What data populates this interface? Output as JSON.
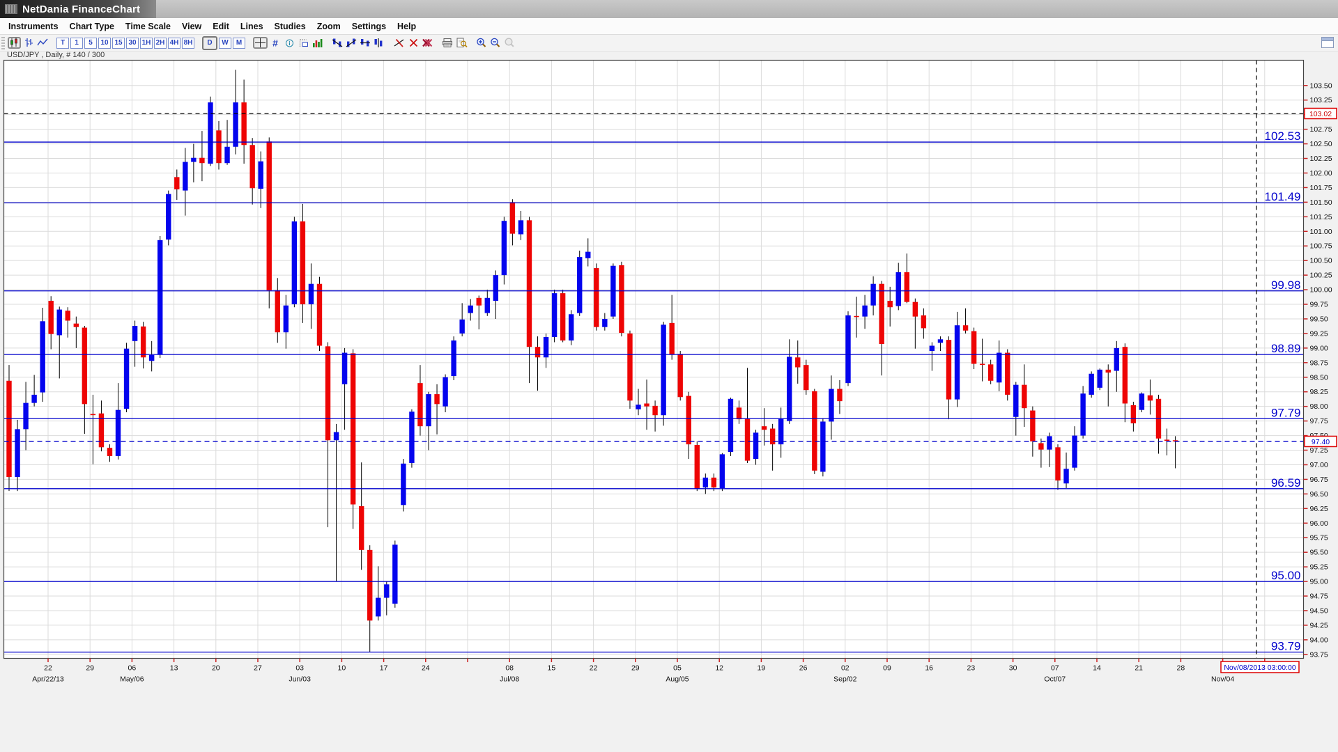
{
  "window": {
    "title": "NetDania FinanceChart"
  },
  "menu": {
    "items": [
      "Instruments",
      "Chart Type",
      "Time Scale",
      "View",
      "Edit",
      "Lines",
      "Studies",
      "Zoom",
      "Settings",
      "Help"
    ]
  },
  "toolbar": {
    "groups": [
      {
        "name": "chart-type",
        "buttons": [
          {
            "name": "candlestick-chart-button",
            "icon": "candlestick-chart-icon",
            "pressed": true
          },
          {
            "name": "bar-chart-button",
            "icon": "bar-chart-icon"
          },
          {
            "name": "line-chart-button",
            "icon": "line-chart-icon"
          }
        ]
      },
      {
        "name": "timeframes",
        "buttons": [
          {
            "name": "tf-tick-button",
            "label": "T"
          },
          {
            "name": "tf-1m-button",
            "label": "1"
          },
          {
            "name": "tf-5m-button",
            "label": "5"
          },
          {
            "name": "tf-10m-button",
            "label": "10"
          },
          {
            "name": "tf-15m-button",
            "label": "15"
          },
          {
            "name": "tf-30m-button",
            "label": "30"
          },
          {
            "name": "tf-1h-button",
            "label": "1H"
          },
          {
            "name": "tf-2h-button",
            "label": "2H"
          },
          {
            "name": "tf-4h-button",
            "label": "4H"
          },
          {
            "name": "tf-8h-button",
            "label": "8H"
          }
        ]
      },
      {
        "name": "timeframes-dwm",
        "buttons": [
          {
            "name": "tf-daily-button",
            "label": "D",
            "pressed": true
          },
          {
            "name": "tf-weekly-button",
            "label": "W"
          },
          {
            "name": "tf-monthly-button",
            "label": "M"
          }
        ]
      },
      {
        "name": "tools",
        "buttons": [
          {
            "name": "crosshair-button",
            "icon": "crosshair-icon",
            "pressed": true
          },
          {
            "name": "grid-button",
            "icon": "grid-icon"
          },
          {
            "name": "info-button",
            "icon": "info-icon"
          },
          {
            "name": "measure-button",
            "icon": "measure-icon"
          },
          {
            "name": "volume-button",
            "icon": "volume-icon"
          }
        ]
      },
      {
        "name": "line-tools",
        "buttons": [
          {
            "name": "trendline-down-button",
            "icon": "trendline-down-icon"
          },
          {
            "name": "trendline-up-button",
            "icon": "trendline-up-icon"
          },
          {
            "name": "horizontal-line-button",
            "icon": "horizontal-line-icon"
          },
          {
            "name": "vertical-line-button",
            "icon": "vertical-line-icon"
          }
        ]
      },
      {
        "name": "delete-tools",
        "buttons": [
          {
            "name": "delete-line-button",
            "icon": "delete-line-icon"
          },
          {
            "name": "delete-selected-button",
            "icon": "delete-selected-icon"
          },
          {
            "name": "delete-all-button",
            "icon": "delete-all-icon"
          }
        ]
      },
      {
        "name": "print-tools",
        "buttons": [
          {
            "name": "print-button",
            "icon": "print-icon"
          },
          {
            "name": "print-preview-button",
            "icon": "print-preview-icon"
          }
        ]
      },
      {
        "name": "zoom-tools",
        "buttons": [
          {
            "name": "zoom-in-button",
            "icon": "zoom-in-icon"
          },
          {
            "name": "zoom-out-button",
            "icon": "zoom-out-icon"
          },
          {
            "name": "zoom-reset-button",
            "icon": "zoom-reset-icon",
            "disabled": true
          }
        ]
      }
    ]
  },
  "chart": {
    "instrument_label": "USD/JPY , Daily, # 140 / 300"
  },
  "chart_data": {
    "type": "candlestick",
    "symbol": "USD/JPY",
    "timeframe": "Daily",
    "shown_count_label": "# 140 / 300",
    "ylim": [
      93.69,
      104.0
    ],
    "grid": true,
    "colors": {
      "up": "#0404ee",
      "down": "#ee0404",
      "wick": "#000000",
      "level_line": "#0000cc",
      "grid_line": "#dbdbdb",
      "axis_text": "#111111",
      "tick_mark": "#cc2222",
      "marker_box_border": "#dd0000"
    },
    "price_axis_labels": [
      "103.50",
      "103.25",
      "103.00",
      "102.75",
      "102.50",
      "102.25",
      "102.00",
      "101.75",
      "101.50",
      "101.25",
      "101.00",
      "100.75",
      "100.50",
      "100.25",
      "100.00",
      "99.75",
      "99.50",
      "99.25",
      "99.00",
      "98.75",
      "98.50",
      "98.25",
      "98.00",
      "97.75",
      "97.50",
      "97.25",
      "97.00",
      "96.75",
      "96.50",
      "96.25",
      "96.00",
      "95.75",
      "95.50",
      "95.25",
      "95.00",
      "94.75",
      "94.50",
      "94.25",
      "94.00",
      "93.75"
    ],
    "date_ticks": [
      {
        "label": "22",
        "month": "Apr/22/13"
      },
      {
        "label": "29"
      },
      {
        "label": "06",
        "month": "May/06"
      },
      {
        "label": "13"
      },
      {
        "label": "20"
      },
      {
        "label": "27"
      },
      {
        "label": "03",
        "month": "Jun/03"
      },
      {
        "label": "10"
      },
      {
        "label": "17"
      },
      {
        "label": "24"
      },
      {
        "label": ""
      },
      {
        "label": "08",
        "month": "Jul/08"
      },
      {
        "label": "15"
      },
      {
        "label": "22"
      },
      {
        "label": "29"
      },
      {
        "label": "05",
        "month": "Aug/05"
      },
      {
        "label": "12"
      },
      {
        "label": "19"
      },
      {
        "label": "26"
      },
      {
        "label": "02",
        "month": "Sep/02"
      },
      {
        "label": "09"
      },
      {
        "label": "16"
      },
      {
        "label": "23"
      },
      {
        "label": "30"
      },
      {
        "label": "07",
        "month": "Oct/07"
      },
      {
        "label": "14"
      },
      {
        "label": "21"
      },
      {
        "label": "28"
      },
      {
        "label": "",
        "month": "Nov/04"
      },
      {
        "label": ""
      }
    ],
    "horizontal_levels": [
      {
        "price": 102.53,
        "label": "102.53"
      },
      {
        "price": 101.49,
        "label": "101.49"
      },
      {
        "price": 99.98,
        "label": "99.98"
      },
      {
        "price": 98.89,
        "label": "98.89"
      },
      {
        "price": 97.79,
        "label": "97.79"
      },
      {
        "price": 96.59,
        "label": "96.59"
      },
      {
        "price": 95.0,
        "label": "95.00"
      },
      {
        "price": 93.79,
        "label": "93.79"
      }
    ],
    "current_price": {
      "value": 97.4,
      "label": "97.40"
    },
    "crosshair": {
      "price": 103.02,
      "price_label": "103.02",
      "time_label": "Nov/08/2013 03:00:00"
    },
    "candles": [
      [
        98.44,
        98.71,
        96.55,
        96.79
      ],
      [
        96.79,
        97.77,
        96.55,
        97.61
      ],
      [
        97.61,
        98.42,
        97.25,
        98.06
      ],
      [
        98.06,
        98.54,
        98.0,
        98.2
      ],
      [
        98.24,
        99.69,
        98.08,
        99.46
      ],
      [
        99.81,
        99.89,
        98.98,
        99.24
      ],
      [
        99.22,
        99.71,
        98.48,
        99.66
      ],
      [
        99.64,
        99.7,
        99.18,
        99.47
      ],
      [
        99.42,
        99.54,
        99.0,
        99.36
      ],
      [
        99.35,
        99.38,
        97.53,
        98.04
      ],
      [
        97.87,
        98.2,
        97.01,
        97.86
      ],
      [
        97.88,
        98.1,
        97.23,
        97.3
      ],
      [
        97.29,
        97.35,
        97.05,
        97.15
      ],
      [
        97.15,
        98.4,
        97.09,
        97.94
      ],
      [
        97.96,
        99.09,
        97.9,
        98.99
      ],
      [
        99.12,
        99.47,
        98.68,
        99.38
      ],
      [
        99.37,
        99.45,
        98.65,
        98.84
      ],
      [
        98.78,
        99.12,
        98.6,
        98.88
      ],
      [
        98.89,
        100.92,
        98.83,
        100.85
      ],
      [
        100.86,
        101.7,
        100.76,
        101.64
      ],
      [
        101.93,
        102.06,
        101.54,
        101.72
      ],
      [
        101.7,
        102.43,
        101.27,
        102.19
      ],
      [
        102.19,
        102.5,
        101.84,
        102.26
      ],
      [
        102.26,
        102.72,
        101.86,
        102.17
      ],
      [
        102.16,
        103.31,
        102.12,
        103.21
      ],
      [
        102.73,
        102.89,
        102.06,
        102.17
      ],
      [
        102.17,
        102.91,
        102.14,
        102.45
      ],
      [
        102.45,
        103.77,
        102.32,
        103.21
      ],
      [
        103.21,
        103.6,
        102.16,
        102.48
      ],
      [
        102.48,
        102.6,
        101.46,
        101.74
      ],
      [
        101.73,
        102.37,
        101.4,
        102.2
      ],
      [
        102.54,
        102.61,
        99.68,
        99.99
      ],
      [
        99.99,
        100.2,
        99.09,
        99.27
      ],
      [
        99.27,
        99.91,
        98.99,
        99.73
      ],
      [
        99.75,
        101.25,
        99.7,
        101.17
      ],
      [
        101.17,
        101.47,
        99.43,
        99.75
      ],
      [
        99.75,
        100.45,
        99.33,
        100.1
      ],
      [
        100.1,
        100.22,
        98.95,
        99.04
      ],
      [
        99.03,
        99.1,
        95.93,
        97.42
      ],
      [
        97.42,
        97.7,
        95.0,
        97.56
      ],
      [
        98.38,
        99.0,
        97.6,
        98.92
      ],
      [
        98.91,
        98.98,
        95.9,
        96.32
      ],
      [
        96.29,
        97.04,
        95.2,
        95.54
      ],
      [
        95.54,
        95.62,
        93.79,
        94.33
      ],
      [
        94.4,
        95.26,
        94.33,
        94.72
      ],
      [
        94.72,
        95.0,
        94.42,
        94.95
      ],
      [
        94.62,
        95.7,
        94.55,
        95.63
      ],
      [
        96.31,
        97.1,
        96.2,
        97.02
      ],
      [
        97.03,
        97.95,
        96.95,
        97.91
      ],
      [
        98.4,
        98.71,
        97.5,
        97.66
      ],
      [
        97.66,
        98.25,
        97.25,
        98.21
      ],
      [
        98.21,
        98.38,
        97.52,
        98.04
      ],
      [
        98.0,
        98.55,
        97.9,
        98.5
      ],
      [
        98.52,
        99.2,
        98.45,
        99.13
      ],
      [
        99.25,
        99.77,
        99.2,
        99.49
      ],
      [
        99.6,
        99.84,
        99.47,
        99.73
      ],
      [
        99.86,
        99.9,
        99.32,
        99.73
      ],
      [
        99.6,
        100.0,
        99.55,
        99.86
      ],
      [
        99.81,
        100.33,
        99.5,
        100.25
      ],
      [
        100.25,
        101.25,
        100.09,
        101.18
      ],
      [
        101.5,
        101.55,
        100.76,
        100.96
      ],
      [
        100.95,
        101.35,
        100.85,
        101.19
      ],
      [
        101.19,
        101.25,
        98.4,
        99.02
      ],
      [
        99.02,
        99.2,
        98.27,
        98.84
      ],
      [
        98.84,
        99.25,
        98.66,
        99.19
      ],
      [
        99.19,
        100.0,
        99.1,
        99.94
      ],
      [
        99.94,
        100.0,
        99.1,
        99.13
      ],
      [
        99.13,
        99.65,
        99.05,
        99.58
      ],
      [
        99.6,
        100.67,
        99.55,
        100.56
      ],
      [
        100.54,
        100.88,
        100.4,
        100.65
      ],
      [
        100.37,
        100.45,
        99.3,
        99.36
      ],
      [
        99.36,
        99.6,
        99.3,
        99.5
      ],
      [
        99.54,
        100.45,
        99.5,
        100.41
      ],
      [
        100.42,
        100.48,
        99.2,
        99.26
      ],
      [
        99.25,
        99.3,
        97.96,
        98.1
      ],
      [
        97.95,
        98.3,
        97.85,
        98.03
      ],
      [
        98.05,
        98.46,
        97.6,
        98.0
      ],
      [
        98.01,
        98.1,
        97.57,
        97.85
      ],
      [
        97.85,
        99.45,
        97.67,
        99.4
      ],
      [
        99.43,
        99.91,
        98.8,
        98.89
      ],
      [
        98.9,
        98.95,
        98.1,
        98.16
      ],
      [
        98.18,
        98.25,
        97.1,
        97.35
      ],
      [
        97.34,
        97.4,
        96.55,
        96.59
      ],
      [
        96.61,
        96.85,
        96.5,
        96.78
      ],
      [
        96.78,
        96.85,
        96.55,
        96.61
      ],
      [
        96.6,
        97.2,
        96.55,
        97.18
      ],
      [
        97.22,
        98.15,
        97.15,
        98.13
      ],
      [
        97.98,
        98.1,
        97.7,
        97.78
      ],
      [
        97.79,
        98.66,
        97.03,
        97.07
      ],
      [
        97.1,
        97.6,
        97.0,
        97.55
      ],
      [
        97.66,
        97.97,
        97.33,
        97.6
      ],
      [
        97.62,
        97.7,
        96.9,
        97.35
      ],
      [
        97.35,
        97.98,
        97.12,
        97.79
      ],
      [
        97.75,
        99.15,
        97.7,
        98.85
      ],
      [
        98.84,
        99.13,
        98.39,
        98.67
      ],
      [
        98.71,
        98.8,
        98.2,
        98.28
      ],
      [
        98.26,
        98.3,
        96.84,
        96.9
      ],
      [
        96.88,
        97.8,
        96.8,
        97.74
      ],
      [
        97.74,
        98.53,
        97.43,
        98.3
      ],
      [
        98.3,
        98.45,
        97.87,
        98.09
      ],
      [
        98.4,
        99.63,
        98.35,
        99.56
      ],
      [
        99.55,
        99.88,
        99.18,
        99.55
      ],
      [
        99.54,
        99.91,
        99.33,
        99.73
      ],
      [
        99.73,
        100.23,
        99.56,
        100.1
      ],
      [
        100.1,
        100.15,
        98.53,
        99.07
      ],
      [
        99.81,
        100.05,
        99.37,
        99.7
      ],
      [
        99.72,
        100.46,
        99.65,
        100.3
      ],
      [
        100.3,
        100.62,
        99.77,
        99.79
      ],
      [
        99.79,
        99.85,
        98.99,
        99.54
      ],
      [
        99.56,
        99.68,
        99.16,
        99.34
      ],
      [
        98.95,
        99.1,
        98.61,
        99.04
      ],
      [
        99.09,
        99.2,
        98.95,
        99.15
      ],
      [
        99.14,
        99.2,
        97.78,
        98.12
      ],
      [
        98.12,
        99.62,
        97.99,
        99.39
      ],
      [
        99.39,
        99.68,
        99.25,
        99.3
      ],
      [
        99.29,
        99.35,
        98.64,
        98.73
      ],
      [
        98.73,
        99.16,
        98.43,
        98.73
      ],
      [
        98.72,
        98.8,
        98.38,
        98.44
      ],
      [
        98.41,
        99.13,
        98.26,
        98.92
      ],
      [
        98.92,
        98.98,
        98.1,
        98.2
      ],
      [
        97.82,
        98.42,
        97.5,
        98.37
      ],
      [
        98.37,
        98.72,
        97.65,
        97.97
      ],
      [
        97.93,
        98.0,
        97.14,
        97.4
      ],
      [
        97.37,
        97.45,
        96.95,
        97.26
      ],
      [
        97.26,
        97.55,
        96.96,
        97.49
      ],
      [
        97.3,
        97.35,
        96.57,
        96.73
      ],
      [
        96.68,
        97.21,
        96.6,
        96.93
      ],
      [
        96.95,
        97.66,
        96.9,
        97.5
      ],
      [
        97.5,
        98.35,
        97.45,
        98.22
      ],
      [
        98.2,
        98.6,
        98.15,
        98.56
      ],
      [
        98.32,
        98.65,
        98.28,
        98.63
      ],
      [
        98.63,
        98.72,
        98.0,
        98.58
      ],
      [
        98.61,
        99.12,
        98.25,
        99.0
      ],
      [
        99.02,
        99.08,
        97.73,
        98.05
      ],
      [
        98.02,
        98.08,
        97.57,
        97.71
      ],
      [
        97.94,
        98.24,
        97.9,
        98.22
      ],
      [
        98.19,
        98.46,
        97.86,
        98.1
      ],
      [
        98.13,
        98.2,
        97.19,
        97.45
      ],
      [
        97.43,
        97.62,
        97.16,
        97.43
      ],
      [
        97.42,
        97.49,
        96.94,
        97.4
      ]
    ]
  }
}
